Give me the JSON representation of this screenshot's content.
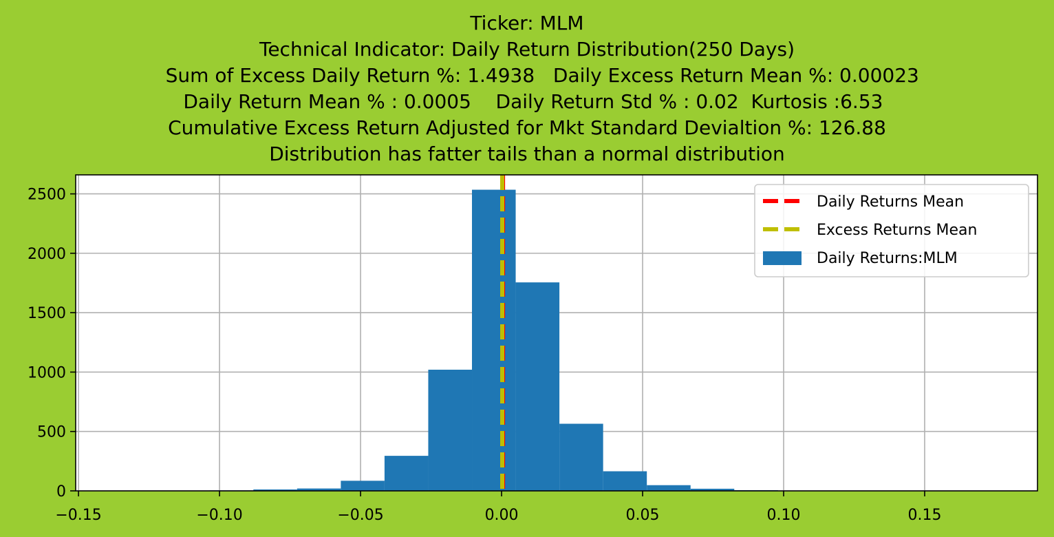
{
  "figure": {
    "background": "#9acd32"
  },
  "title_lines": [
    "Ticker: MLM",
    "Technical Indicator: Daily Return Distribution(250 Days)",
    "     Sum of Excess Daily Return %: 1.4938   Daily Excess Return Mean %: 0.00023",
    "  Daily Return Mean % : 0.0005    Daily Return Std % : 0.02  Kurtosis :6.53",
    "Cumulative Excess Return Adjusted for Mkt Standard Devialtion %: 126.88",
    "Distribution has fatter tails than a normal distribution"
  ],
  "chart_data": {
    "type": "bar",
    "title": "Ticker: MLM\nTechnical Indicator: Daily Return Distribution(250 Days)\nSum of Excess Daily Return %: 1.4938   Daily Excess Return Mean %: 0.00023\nDaily Return Mean % : 0.0005    Daily Return Std % : 0.02  Kurtosis :6.53\nCumulative Excess Return Adjusted for Mkt Standard Devialtion %: 126.88\nDistribution has fatter tails than a normal distribution",
    "xlabel": "",
    "ylabel": "",
    "xlim": [
      -0.151,
      0.19
    ],
    "ylim": [
      0,
      2660
    ],
    "grid": true,
    "legend_position": "top-right",
    "x_ticks": [
      -0.15,
      -0.1,
      -0.05,
      0.0,
      0.05,
      0.1,
      0.15
    ],
    "x_tick_labels": [
      "−0.15",
      "−0.10",
      "−0.05",
      "0.00",
      "0.05",
      "0.10",
      "0.15"
    ],
    "y_ticks": [
      0,
      500,
      1000,
      1500,
      2000,
      2500
    ],
    "y_tick_labels": [
      "0",
      "500",
      "1000",
      "1500",
      "2000",
      "2500"
    ],
    "series": [
      {
        "name": "Daily Returns:MLM",
        "kind": "histogram",
        "color": "#1f77b4",
        "bins": [
          {
            "x0": -0.15,
            "x1": -0.1345,
            "count": 1
          },
          {
            "x0": -0.1345,
            "x1": -0.119,
            "count": 1
          },
          {
            "x0": -0.119,
            "x1": -0.1035,
            "count": 2
          },
          {
            "x0": -0.1035,
            "x1": -0.088,
            "count": 4
          },
          {
            "x0": -0.088,
            "x1": -0.0725,
            "count": 12
          },
          {
            "x0": -0.0725,
            "x1": -0.057,
            "count": 20
          },
          {
            "x0": -0.057,
            "x1": -0.0415,
            "count": 85
          },
          {
            "x0": -0.0415,
            "x1": -0.026,
            "count": 295
          },
          {
            "x0": -0.026,
            "x1": -0.0105,
            "count": 1020
          },
          {
            "x0": -0.0105,
            "x1": 0.005,
            "count": 2535
          },
          {
            "x0": 0.005,
            "x1": 0.0205,
            "count": 1755
          },
          {
            "x0": 0.0205,
            "x1": 0.036,
            "count": 565
          },
          {
            "x0": 0.036,
            "x1": 0.0515,
            "count": 165
          },
          {
            "x0": 0.0515,
            "x1": 0.067,
            "count": 48
          },
          {
            "x0": 0.067,
            "x1": 0.0825,
            "count": 18
          },
          {
            "x0": 0.0825,
            "x1": 0.098,
            "count": 6
          },
          {
            "x0": 0.098,
            "x1": 0.1135,
            "count": 2
          },
          {
            "x0": 0.1135,
            "x1": 0.129,
            "count": 1
          },
          {
            "x0": 0.129,
            "x1": 0.1445,
            "count": 1
          },
          {
            "x0": 0.1445,
            "x1": 0.16,
            "count": 0
          },
          {
            "x0": 0.16,
            "x1": 0.1755,
            "count": 1
          }
        ]
      },
      {
        "name": "Daily Returns Mean",
        "kind": "vline",
        "x": 0.0005,
        "color": "#ff0000",
        "style": "dashed"
      },
      {
        "name": "Excess Returns Mean",
        "kind": "vline",
        "x": 0.00023,
        "color": "#bfbf00",
        "style": "dashed"
      }
    ],
    "legend": [
      {
        "label": "Daily Returns Mean",
        "color": "#ff0000",
        "kind": "dashed-line"
      },
      {
        "label": "Excess Returns Mean",
        "color": "#bfbf00",
        "kind": "dashed-line"
      },
      {
        "label": "Daily Returns:MLM",
        "color": "#1f77b4",
        "kind": "patch"
      }
    ]
  }
}
